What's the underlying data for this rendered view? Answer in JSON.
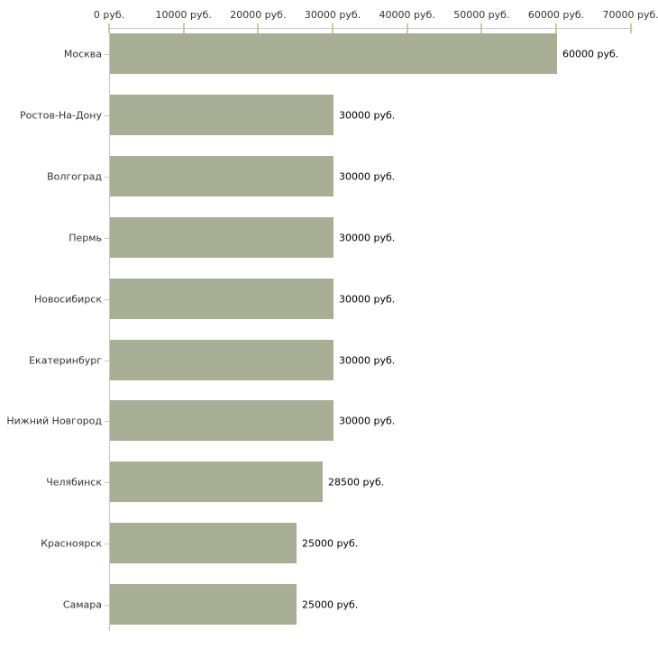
{
  "chart_data": {
    "type": "bar",
    "orientation": "horizontal",
    "title": "",
    "xlabel": "",
    "ylabel": "",
    "categories": [
      "Москва",
      "Ростов-На-Дону",
      "Волгоград",
      "Пермь",
      "Новосибирск",
      "Екатеринбург",
      "Нижний Новгород",
      "Челябинск",
      "Красноярск",
      "Самара"
    ],
    "values": [
      60000,
      30000,
      30000,
      30000,
      30000,
      30000,
      30000,
      28500,
      25000,
      25000
    ],
    "value_labels": [
      "60000 руб.",
      "30000 руб.",
      "30000 руб.",
      "30000 руб.",
      "30000 руб.",
      "30000 руб.",
      "30000 руб.",
      "28500 руб.",
      "25000 руб.",
      "25000 руб."
    ],
    "xlim": [
      0,
      70000
    ],
    "x_ticks": [
      0,
      10000,
      20000,
      30000,
      40000,
      50000,
      60000,
      70000
    ],
    "x_tick_labels": [
      "0 руб.",
      "10000 руб.",
      "20000 руб.",
      "30000 руб.",
      "40000 руб.",
      "50000 руб.",
      "60000 руб.",
      "70000 руб."
    ],
    "axis_position": "top",
    "grid": false,
    "legend": false,
    "colors": {
      "bar": "#a9af95",
      "axis_line": "#c8c8c8",
      "tick": "#cccc99",
      "label_text": "#333333",
      "value_text": "#000000",
      "background": "#ffffff"
    }
  }
}
